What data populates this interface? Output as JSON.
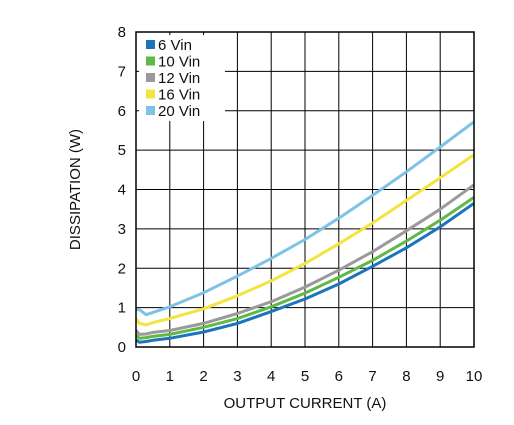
{
  "chart_data": {
    "type": "line",
    "xlabel": "OUTPUT CURRENT (A)",
    "ylabel": "DISSIPATION (W)",
    "xlim": [
      0,
      10
    ],
    "ylim": [
      0,
      8
    ],
    "xticks": [
      "0",
      "1",
      "2",
      "3",
      "4",
      "5",
      "6",
      "7",
      "8",
      "9",
      "10"
    ],
    "yticks": [
      "0",
      "1",
      "2",
      "3",
      "4",
      "5",
      "6",
      "7",
      "8"
    ],
    "grid": true,
    "legend_position": "top-left",
    "series": [
      {
        "name": "6 Vin",
        "color": "#1b75bb",
        "x": [
          0,
          0.1,
          0.3,
          0.5,
          1,
          2,
          3,
          4,
          5,
          6,
          7,
          8,
          9,
          10
        ],
        "y": [
          0.18,
          0.12,
          0.14,
          0.17,
          0.22,
          0.38,
          0.6,
          0.9,
          1.22,
          1.6,
          2.05,
          2.52,
          3.05,
          3.65
        ]
      },
      {
        "name": "10 Vin",
        "color": "#5fb946",
        "x": [
          0,
          0.1,
          0.3,
          0.5,
          1,
          2,
          3,
          4,
          5,
          6,
          7,
          8,
          9,
          10
        ],
        "y": [
          0.3,
          0.22,
          0.24,
          0.27,
          0.32,
          0.5,
          0.72,
          1.02,
          1.37,
          1.77,
          2.2,
          2.69,
          3.22,
          3.8
        ]
      },
      {
        "name": "12 Vin",
        "color": "#9a9a9a",
        "x": [
          0,
          0.1,
          0.3,
          0.5,
          1,
          2,
          3,
          4,
          5,
          6,
          7,
          8,
          9,
          10
        ],
        "y": [
          0.42,
          0.32,
          0.33,
          0.37,
          0.42,
          0.6,
          0.85,
          1.15,
          1.52,
          1.95,
          2.42,
          2.95,
          3.5,
          4.12
        ]
      },
      {
        "name": "16 Vin",
        "color": "#f4e440",
        "x": [
          0,
          0.1,
          0.3,
          0.5,
          1,
          2,
          3,
          4,
          5,
          6,
          7,
          8,
          9,
          10
        ],
        "y": [
          0.72,
          0.6,
          0.56,
          0.62,
          0.72,
          0.97,
          1.3,
          1.68,
          2.12,
          2.62,
          3.15,
          3.72,
          4.3,
          4.88
        ]
      },
      {
        "name": "20 Vin",
        "color": "#7ec3e6",
        "x": [
          0,
          0.1,
          0.3,
          0.5,
          1,
          2,
          3,
          4,
          5,
          6,
          7,
          8,
          9,
          10
        ],
        "y": [
          0.95,
          0.95,
          0.82,
          0.88,
          1.02,
          1.38,
          1.8,
          2.25,
          2.73,
          3.27,
          3.85,
          4.45,
          5.08,
          5.72
        ]
      }
    ]
  }
}
